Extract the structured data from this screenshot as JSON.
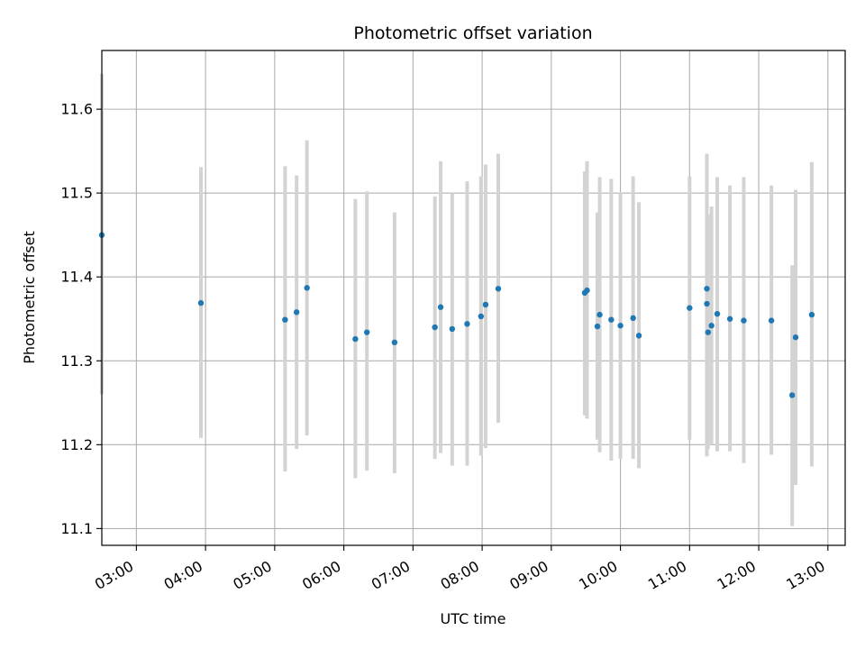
{
  "chart_data": {
    "type": "scatter",
    "title": "Photometric offset variation",
    "xlabel": "UTC time",
    "ylabel": "Photometric offset",
    "x_axis_type": "time",
    "xlim": [
      "02:30",
      "13:15"
    ],
    "ylim": [
      11.08,
      11.67
    ],
    "grid": true,
    "x_ticks": [
      "03:00",
      "04:00",
      "05:00",
      "06:00",
      "07:00",
      "08:00",
      "09:00",
      "10:00",
      "11:00",
      "12:00",
      "13:00"
    ],
    "y_ticks": [
      11.1,
      11.2,
      11.3,
      11.4,
      11.5,
      11.6
    ],
    "colors": {
      "marker": "#1f77b4",
      "errorbar": "#d3d3d3",
      "grid": "#b0b0b0"
    },
    "points": [
      {
        "x": "02:30",
        "y": 11.45,
        "ylow": 11.26,
        "yhigh": 11.642
      },
      {
        "x": "03:56",
        "y": 11.369,
        "ylow": 11.208,
        "yhigh": 11.531
      },
      {
        "x": "05:09",
        "y": 11.349,
        "ylow": 11.168,
        "yhigh": 11.532
      },
      {
        "x": "05:19",
        "y": 11.358,
        "ylow": 11.195,
        "yhigh": 11.521
      },
      {
        "x": "05:28",
        "y": 11.387,
        "ylow": 11.211,
        "yhigh": 11.563
      },
      {
        "x": "06:10",
        "y": 11.326,
        "ylow": 11.16,
        "yhigh": 11.493
      },
      {
        "x": "06:20",
        "y": 11.334,
        "ylow": 11.169,
        "yhigh": 11.502
      },
      {
        "x": "06:44",
        "y": 11.322,
        "ylow": 11.166,
        "yhigh": 11.477
      },
      {
        "x": "07:19",
        "y": 11.34,
        "ylow": 11.183,
        "yhigh": 11.496
      },
      {
        "x": "07:24",
        "y": 11.364,
        "ylow": 11.19,
        "yhigh": 11.538
      },
      {
        "x": "07:34",
        "y": 11.338,
        "ylow": 11.175,
        "yhigh": 11.5
      },
      {
        "x": "07:47",
        "y": 11.344,
        "ylow": 11.175,
        "yhigh": 11.514
      },
      {
        "x": "07:59",
        "y": 11.353,
        "ylow": 11.187,
        "yhigh": 11.52
      },
      {
        "x": "08:03",
        "y": 11.367,
        "ylow": 11.196,
        "yhigh": 11.534
      },
      {
        "x": "08:14",
        "y": 11.386,
        "ylow": 11.226,
        "yhigh": 11.547
      },
      {
        "x": "09:29",
        "y": 11.381,
        "ylow": 11.235,
        "yhigh": 11.526
      },
      {
        "x": "09:31",
        "y": 11.384,
        "ylow": 11.231,
        "yhigh": 11.538
      },
      {
        "x": "09:40",
        "y": 11.341,
        "ylow": 11.206,
        "yhigh": 11.477
      },
      {
        "x": "09:42",
        "y": 11.355,
        "ylow": 11.191,
        "yhigh": 11.519
      },
      {
        "x": "09:52",
        "y": 11.349,
        "ylow": 11.181,
        "yhigh": 11.517
      },
      {
        "x": "10:00",
        "y": 11.342,
        "ylow": 11.183,
        "yhigh": 11.501
      },
      {
        "x": "10:11",
        "y": 11.351,
        "ylow": 11.183,
        "yhigh": 11.52
      },
      {
        "x": "10:16",
        "y": 11.33,
        "ylow": 11.172,
        "yhigh": 11.489
      },
      {
        "x": "11:00",
        "y": 11.363,
        "ylow": 11.206,
        "yhigh": 11.52
      },
      {
        "x": "11:15",
        "y": 11.368,
        "ylow": 11.192,
        "yhigh": 11.547
      },
      {
        "x": "11:15",
        "y": 11.386,
        "ylow": 11.186,
        "yhigh": 11.542
      },
      {
        "x": "11:16",
        "y": 11.334,
        "ylow": 11.195,
        "yhigh": 11.475
      },
      {
        "x": "11:19",
        "y": 11.342,
        "ylow": 11.2,
        "yhigh": 11.484
      },
      {
        "x": "11:24",
        "y": 11.356,
        "ylow": 11.192,
        "yhigh": 11.519
      },
      {
        "x": "11:35",
        "y": 11.35,
        "ylow": 11.192,
        "yhigh": 11.509
      },
      {
        "x": "11:47",
        "y": 11.348,
        "ylow": 11.178,
        "yhigh": 11.519
      },
      {
        "x": "12:11",
        "y": 11.348,
        "ylow": 11.188,
        "yhigh": 11.509
      },
      {
        "x": "12:29",
        "y": 11.259,
        "ylow": 11.103,
        "yhigh": 11.414
      },
      {
        "x": "12:32",
        "y": 11.328,
        "ylow": 11.152,
        "yhigh": 11.504
      },
      {
        "x": "12:46",
        "y": 11.355,
        "ylow": 11.174,
        "yhigh": 11.537
      }
    ]
  }
}
